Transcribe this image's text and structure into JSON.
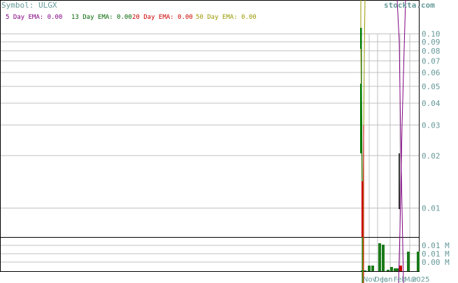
{
  "header": {
    "symbol_text": "Symbol: ULGX",
    "watermark": "stockta.com"
  },
  "legend": [
    {
      "label": "5 Day EMA:",
      "value": "0.00",
      "color": "#800080"
    },
    {
      "label": "13 Day EMA:",
      "value": "0.00",
      "color": "#006400"
    },
    {
      "label": "20 Day EMA:",
      "value": "0.00",
      "color": "#cc0000"
    },
    {
      "label": "50 Day EMA:",
      "value": "0.00",
      "color": "#999900"
    }
  ],
  "colors": {
    "up_candle": "#008000",
    "down_candle": "#cc0000",
    "volume_bar": "#1a7a1a",
    "axis_text": "#669999",
    "grid": "#c0c0c0",
    "frame": "#000000",
    "ema5": "#800080",
    "ema13": "#006400",
    "ema20": "#cc0000",
    "ema50": "#999900"
  },
  "chart_data": {
    "type": "candlestick",
    "price_axis": {
      "scale": "log",
      "ticks": [
        0.1,
        0.09,
        0.08,
        0.07,
        0.06,
        0.05,
        0.04,
        0.03,
        0.02,
        0.01
      ],
      "tick_labels": [
        "0.10",
        "0.09",
        "0.08",
        "0.07",
        "0.06",
        "0.05",
        "0.04",
        "0.03",
        "0.02",
        "0.01"
      ]
    },
    "volume_axis": {
      "tick_labels": [
        "0.01 M",
        "0.01 M",
        "0.00 M"
      ]
    },
    "x_axis": {
      "tick_labels": [
        "Nov",
        "Dec",
        "Jan",
        "Feb",
        "Mar",
        "2025"
      ]
    },
    "volume": [
      0,
      0,
      0.2,
      0.2,
      1,
      0.95,
      0.05,
      0.15,
      0.1,
      0.1,
      0.2,
      0.7,
      0.7
    ],
    "grid": true
  }
}
